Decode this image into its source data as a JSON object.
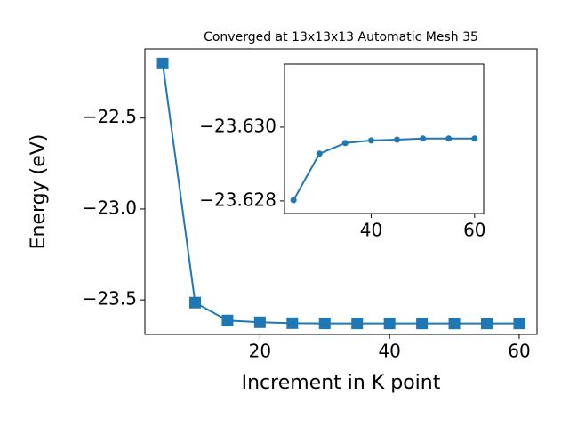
{
  "chart_data": [
    {
      "type": "line",
      "title": "Converged at 13x13x13 Automatic Mesh 35",
      "x_label": "Increment in K point",
      "y_label": "Energy (eV)",
      "marker": "square",
      "color": "#1f77b4",
      "x": [
        5,
        10,
        15,
        20,
        25,
        30,
        35,
        40,
        45,
        50,
        55,
        60
      ],
      "values": [
        -22.2,
        -23.515,
        -23.613,
        -23.623,
        -23.62802,
        -23.62928,
        -23.62957,
        -23.62964,
        -23.62966,
        -23.62969,
        -23.62969,
        -23.62969
      ],
      "xlim": [
        2.25,
        62.75
      ],
      "ylim": [
        -23.69,
        -22.12
      ],
      "xticks": [
        20,
        40,
        60
      ],
      "yticks": [
        {
          "value": -22.5,
          "label": "−22.5"
        },
        {
          "value": -23.0,
          "label": "−23.0"
        },
        {
          "value": -23.5,
          "label": "−23.5"
        }
      ]
    },
    {
      "type": "line",
      "marker": "circle",
      "color": "#1f77b4",
      "x": [
        25,
        30,
        35,
        40,
        45,
        50,
        55,
        60
      ],
      "values": [
        -23.62802,
        -23.62928,
        -23.62957,
        -23.62964,
        -23.62966,
        -23.62969,
        -23.62969,
        -23.62969
      ],
      "xlim": [
        23.25,
        61.75
      ],
      "ylim": [
        -23.62766,
        -23.63171
      ],
      "xticks": [
        40,
        60
      ],
      "yticks": [
        {
          "value": -23.63,
          "label": "−23.630"
        },
        {
          "value": -23.628,
          "label": "−23.628"
        }
      ]
    }
  ]
}
